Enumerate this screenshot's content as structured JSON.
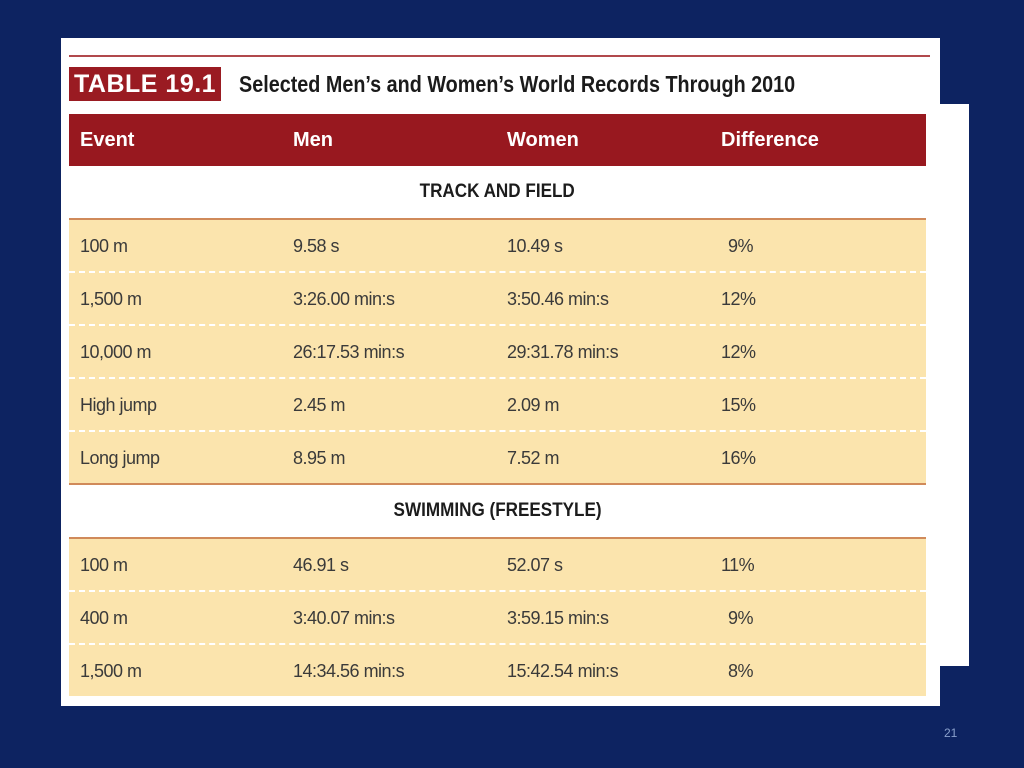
{
  "table_label": "TABLE 19.1",
  "table_title": "Selected Men’s and Women’s World Records Through 2010",
  "columns": [
    "Event",
    "Men",
    "Women",
    "Difference"
  ],
  "sections": [
    {
      "label": "TRACK AND FIELD",
      "rows": [
        {
          "event": "100 m",
          "men": "9.58 s",
          "women": "10.49 s",
          "difference": "9%"
        },
        {
          "event": "1,500 m",
          "men": "3:26.00 min:s",
          "women": "3:50.46 min:s",
          "difference": "12%"
        },
        {
          "event": "10,000 m",
          "men": "26:17.53 min:s",
          "women": "29:31.78 min:s",
          "difference": "12%"
        },
        {
          "event": "High jump",
          "men": "2.45 m",
          "women": "2.09 m",
          "difference": "15%"
        },
        {
          "event": "Long jump",
          "men": "8.95 m",
          "women": "7.52 m",
          "difference": "16%"
        }
      ]
    },
    {
      "label": "SWIMMING (FREESTYLE)",
      "rows": [
        {
          "event": "100 m",
          "men": "46.91 s",
          "women": "52.07 s",
          "difference": "11%"
        },
        {
          "event": "400 m",
          "men": "3:40.07 min:s",
          "women": "3:59.15 min:s",
          "difference": "9%"
        },
        {
          "event": "1,500 m",
          "men": "14:34.56 min:s",
          "women": "15:42.54 min:s",
          "difference": "8%"
        }
      ]
    }
  ],
  "page_number": "21",
  "colors": {
    "slide_background": "#0d2361",
    "header_red": "#98181f",
    "row_tan": "#fbe4ad"
  }
}
